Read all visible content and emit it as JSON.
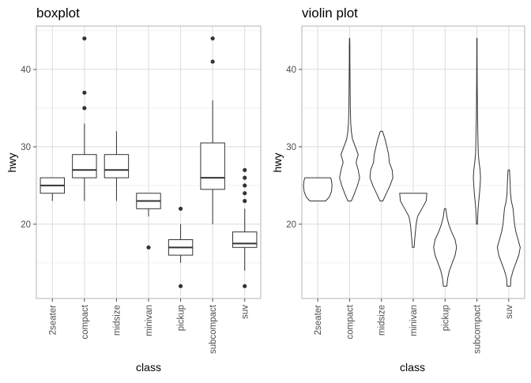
{
  "chart_data": [
    {
      "type": "boxplot",
      "title": "boxplot",
      "xlabel": "class",
      "ylabel": "hwy",
      "ylim": [
        10.4,
        45.6
      ],
      "yticks": [
        20,
        30,
        40
      ],
      "grid": true,
      "categories": [
        "2seater",
        "compact",
        "midsize",
        "minivan",
        "pickup",
        "subcompact",
        "suv"
      ],
      "boxes": [
        {
          "category": "2seater",
          "min": 23,
          "q1": 24,
          "median": 25,
          "q3": 26,
          "max": 26,
          "outliers": []
        },
        {
          "category": "compact",
          "min": 23,
          "q1": 26,
          "median": 27,
          "q3": 29,
          "max": 33,
          "outliers": [
            35,
            37,
            44
          ]
        },
        {
          "category": "midsize",
          "min": 23,
          "q1": 26,
          "median": 27,
          "q3": 29,
          "max": 32,
          "outliers": []
        },
        {
          "category": "minivan",
          "min": 21,
          "q1": 22,
          "median": 23,
          "q3": 24,
          "max": 24,
          "outliers": [
            17
          ]
        },
        {
          "category": "pickup",
          "min": 15,
          "q1": 16,
          "median": 17,
          "q3": 18,
          "max": 20,
          "outliers": [
            12,
            22
          ]
        },
        {
          "category": "subcompact",
          "min": 20,
          "q1": 24.5,
          "median": 26,
          "q3": 30.5,
          "max": 36,
          "outliers": [
            41,
            44
          ]
        },
        {
          "category": "suv",
          "min": 14,
          "q1": 17,
          "median": 17.5,
          "q3": 19,
          "max": 22,
          "outliers": [
            12,
            23,
            24,
            25,
            26,
            27
          ]
        }
      ]
    },
    {
      "type": "violin",
      "title": "violin plot",
      "xlabel": "class",
      "ylabel": "hwy",
      "ylim": [
        10.4,
        45.6
      ],
      "yticks": [
        20,
        30,
        40
      ],
      "grid": true,
      "categories": [
        "2seater",
        "compact",
        "midsize",
        "minivan",
        "pickup",
        "subcompact",
        "suv"
      ],
      "violins": [
        {
          "category": "2seater",
          "profile": [
            [
              23,
              0.55
            ],
            [
              23.5,
              0.8
            ],
            [
              24.2,
              0.95
            ],
            [
              25,
              1.0
            ],
            [
              25.7,
              0.95
            ],
            [
              26,
              0.9
            ]
          ]
        },
        {
          "category": "compact",
          "profile": [
            [
              23,
              0.12
            ],
            [
              24,
              0.35
            ],
            [
              25,
              0.55
            ],
            [
              26,
              0.7
            ],
            [
              27,
              0.6
            ],
            [
              28,
              0.45
            ],
            [
              29,
              0.6
            ],
            [
              30,
              0.4
            ],
            [
              31,
              0.2
            ],
            [
              32,
              0.12
            ],
            [
              33,
              0.08
            ],
            [
              35,
              0.05
            ],
            [
              37,
              0.04
            ],
            [
              39,
              0.03
            ],
            [
              41,
              0.02
            ],
            [
              43,
              0.02
            ],
            [
              44,
              0.01
            ]
          ]
        },
        {
          "category": "midsize",
          "profile": [
            [
              23,
              0.1
            ],
            [
              24,
              0.35
            ],
            [
              25,
              0.6
            ],
            [
              26,
              0.8
            ],
            [
              27,
              0.75
            ],
            [
              28,
              0.55
            ],
            [
              29,
              0.5
            ],
            [
              30,
              0.38
            ],
            [
              31,
              0.25
            ],
            [
              32,
              0.08
            ]
          ]
        },
        {
          "category": "minivan",
          "profile": [
            [
              17,
              0.06
            ],
            [
              18,
              0.1
            ],
            [
              19,
              0.15
            ],
            [
              20,
              0.2
            ],
            [
              21,
              0.3
            ],
            [
              22,
              0.6
            ],
            [
              23,
              0.9
            ],
            [
              24,
              0.95
            ]
          ]
        },
        {
          "category": "pickup",
          "profile": [
            [
              12,
              0.12
            ],
            [
              13,
              0.18
            ],
            [
              14,
              0.3
            ],
            [
              15,
              0.5
            ],
            [
              16,
              0.7
            ],
            [
              17,
              0.8
            ],
            [
              18,
              0.7
            ],
            [
              19,
              0.45
            ],
            [
              20,
              0.25
            ],
            [
              21,
              0.12
            ],
            [
              22,
              0.05
            ]
          ]
        },
        {
          "category": "subcompact",
          "profile": [
            [
              20,
              0.03
            ],
            [
              22,
              0.08
            ],
            [
              24,
              0.18
            ],
            [
              25,
              0.22
            ],
            [
              26,
              0.25
            ],
            [
              27,
              0.22
            ],
            [
              28,
              0.15
            ],
            [
              29,
              0.1
            ],
            [
              30,
              0.08
            ],
            [
              32,
              0.06
            ],
            [
              34,
              0.04
            ],
            [
              36,
              0.03
            ],
            [
              38,
              0.02
            ],
            [
              40,
              0.015
            ],
            [
              42,
              0.01
            ],
            [
              44,
              0.01
            ]
          ]
        },
        {
          "category": "suv",
          "profile": [
            [
              12,
              0.12
            ],
            [
              13,
              0.15
            ],
            [
              14,
              0.3
            ],
            [
              15,
              0.5
            ],
            [
              16,
              0.7
            ],
            [
              17,
              0.8
            ],
            [
              18,
              0.65
            ],
            [
              19,
              0.5
            ],
            [
              20,
              0.4
            ],
            [
              21,
              0.35
            ],
            [
              22,
              0.3
            ],
            [
              23,
              0.18
            ],
            [
              24,
              0.12
            ],
            [
              25,
              0.1
            ],
            [
              26,
              0.08
            ],
            [
              27,
              0.05
            ]
          ]
        }
      ]
    }
  ]
}
